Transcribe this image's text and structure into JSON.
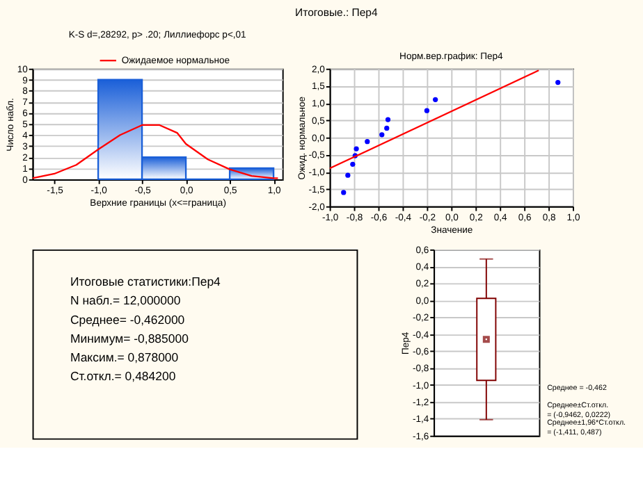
{
  "chart_data": [
    {
      "type": "other",
      "title": "Итоговые.: Пер4"
    },
    {
      "type": "histogram",
      "title": "K-S d=,28292, p> .20; Лиллиефорс p<,01",
      "xlabel": "Верхние границы (x<=граница)",
      "ylabel": "Число набл.",
      "bins": [
        -1.0,
        -0.5,
        0.0,
        0.5,
        1.0
      ],
      "values": [
        9,
        2,
        0,
        1
      ],
      "color": "#1a5fd8",
      "xlim": [
        -1.75,
        1.1
      ],
      "xticks": [
        {
          "value": -1.5,
          "label": "-1,5"
        },
        {
          "value": -1.0,
          "label": "-1,0"
        },
        {
          "value": -0.5,
          "label": "-0,5"
        },
        {
          "value": 0.0,
          "label": "0,0"
        },
        {
          "value": 0.5,
          "label": "0,5"
        },
        {
          "value": 1.0,
          "label": "1,0"
        }
      ],
      "ylim": [
        0,
        10
      ],
      "yticks": [
        0,
        1,
        2,
        3,
        4,
        5,
        6,
        7,
        8,
        9,
        10
      ],
      "grid": "y",
      "legend": "top",
      "series": [
        {
          "name": "Ожидаемое нормальное",
          "type": "line",
          "color": "#ff0000",
          "x": [
            -1.75,
            -1.5,
            -1.25,
            -1.0,
            -0.75,
            -0.5,
            -0.3,
            -0.1,
            0.0,
            0.25,
            0.5,
            0.75,
            1.0,
            1.05
          ],
          "values": [
            0.1,
            0.5,
            1.3,
            2.7,
            4.0,
            4.9,
            4.9,
            4.2,
            3.2,
            1.8,
            0.9,
            0.3,
            0.1,
            0.1
          ]
        }
      ]
    },
    {
      "type": "scatter",
      "title": "Норм.вер.график: Пер4",
      "xlabel": "Значение",
      "ylabel": "Ожид. нормальное",
      "xlim": [
        -1.0,
        1.0
      ],
      "xticks": [
        {
          "value": -1.0,
          "label": "-1,0"
        },
        {
          "value": -0.8,
          "label": "-0,8"
        },
        {
          "value": -0.6,
          "label": "-0,6"
        },
        {
          "value": -0.4,
          "label": "-0,4"
        },
        {
          "value": -0.2,
          "label": "-0,2"
        },
        {
          "value": 0.0,
          "label": "0,0"
        },
        {
          "value": 0.2,
          "label": "0,2"
        },
        {
          "value": 0.4,
          "label": "0,4"
        },
        {
          "value": 0.6,
          "label": "0,6"
        },
        {
          "value": 0.8,
          "label": "0,8"
        },
        {
          "value": 1.0,
          "label": "1,0"
        }
      ],
      "ylim": [
        -2.0,
        2.0
      ],
      "yticks": [
        {
          "value": -2.0,
          "label": "-2,0"
        },
        {
          "value": -1.5,
          "label": "-1,5"
        },
        {
          "value": -1.0,
          "label": "-1,0"
        },
        {
          "value": -0.5,
          "label": "-0,5"
        },
        {
          "value": 0.0,
          "label": "0,0"
        },
        {
          "value": 0.5,
          "label": "0,5"
        },
        {
          "value": 1.0,
          "label": "1,0"
        },
        {
          "value": 1.5,
          "label": "1,5"
        },
        {
          "value": 2.0,
          "label": "2,0"
        }
      ],
      "grid": true,
      "series": [
        {
          "type": "scatter",
          "marker": "circle",
          "color": "#0000ff",
          "x": [
            -0.885,
            -0.85,
            -0.81,
            -0.79,
            -0.78,
            -0.69,
            -0.57,
            -0.53,
            -0.52,
            -0.2,
            -0.13,
            0.878
          ],
          "values": [
            -1.6,
            -1.1,
            -0.78,
            -0.53,
            -0.33,
            -0.12,
            0.08,
            0.27,
            0.52,
            0.78,
            1.1,
            1.6
          ]
        },
        {
          "type": "line",
          "color": "#ff0000",
          "x": [
            -1.0,
            0.72
          ],
          "values": [
            -0.9,
            1.95
          ]
        }
      ]
    },
    {
      "type": "other",
      "title": "Итоговые статистики:Пер4",
      "annotations": [
        "N набл.= 12,000000",
        "Среднее= -0,462000",
        "Минимум= -0,885000",
        "Максим.= 0,878000",
        "Ст.откл.= 0,484200"
      ]
    },
    {
      "type": "box",
      "ylabel": "Пер4",
      "categories": [
        null
      ],
      "color": "#800000",
      "boxes": [
        {
          "low": -1.411,
          "q1": -0.9462,
          "median": -0.462,
          "q3": 0.0222,
          "high": 0.487
        }
      ],
      "ylim": [
        -1.6,
        0.6
      ],
      "yticks": [
        {
          "value": -1.6,
          "label": "-1,6"
        },
        {
          "value": -1.4,
          "label": "-1,4"
        },
        {
          "value": -1.2,
          "label": "-1,2"
        },
        {
          "value": -1.0,
          "label": "-1,0"
        },
        {
          "value": -0.8,
          "label": "-0,8"
        },
        {
          "value": -0.6,
          "label": "-0,6"
        },
        {
          "value": -0.4,
          "label": "-0,4"
        },
        {
          "value": -0.2,
          "label": "-0,2"
        },
        {
          "value": 0.0,
          "label": "0,0"
        },
        {
          "value": 0.2,
          "label": "0,2"
        },
        {
          "value": 0.4,
          "label": "0,4"
        },
        {
          "value": 0.6,
          "label": "0,6"
        }
      ],
      "grid": "y",
      "annotations": [
        "Среднее = -0,462",
        "Среднее±Ст.откл.\n= (-0,9462, 0,0222)",
        "Среднее±1,96*Ст.откл.\n= (-1,411, 0,487)"
      ]
    }
  ]
}
